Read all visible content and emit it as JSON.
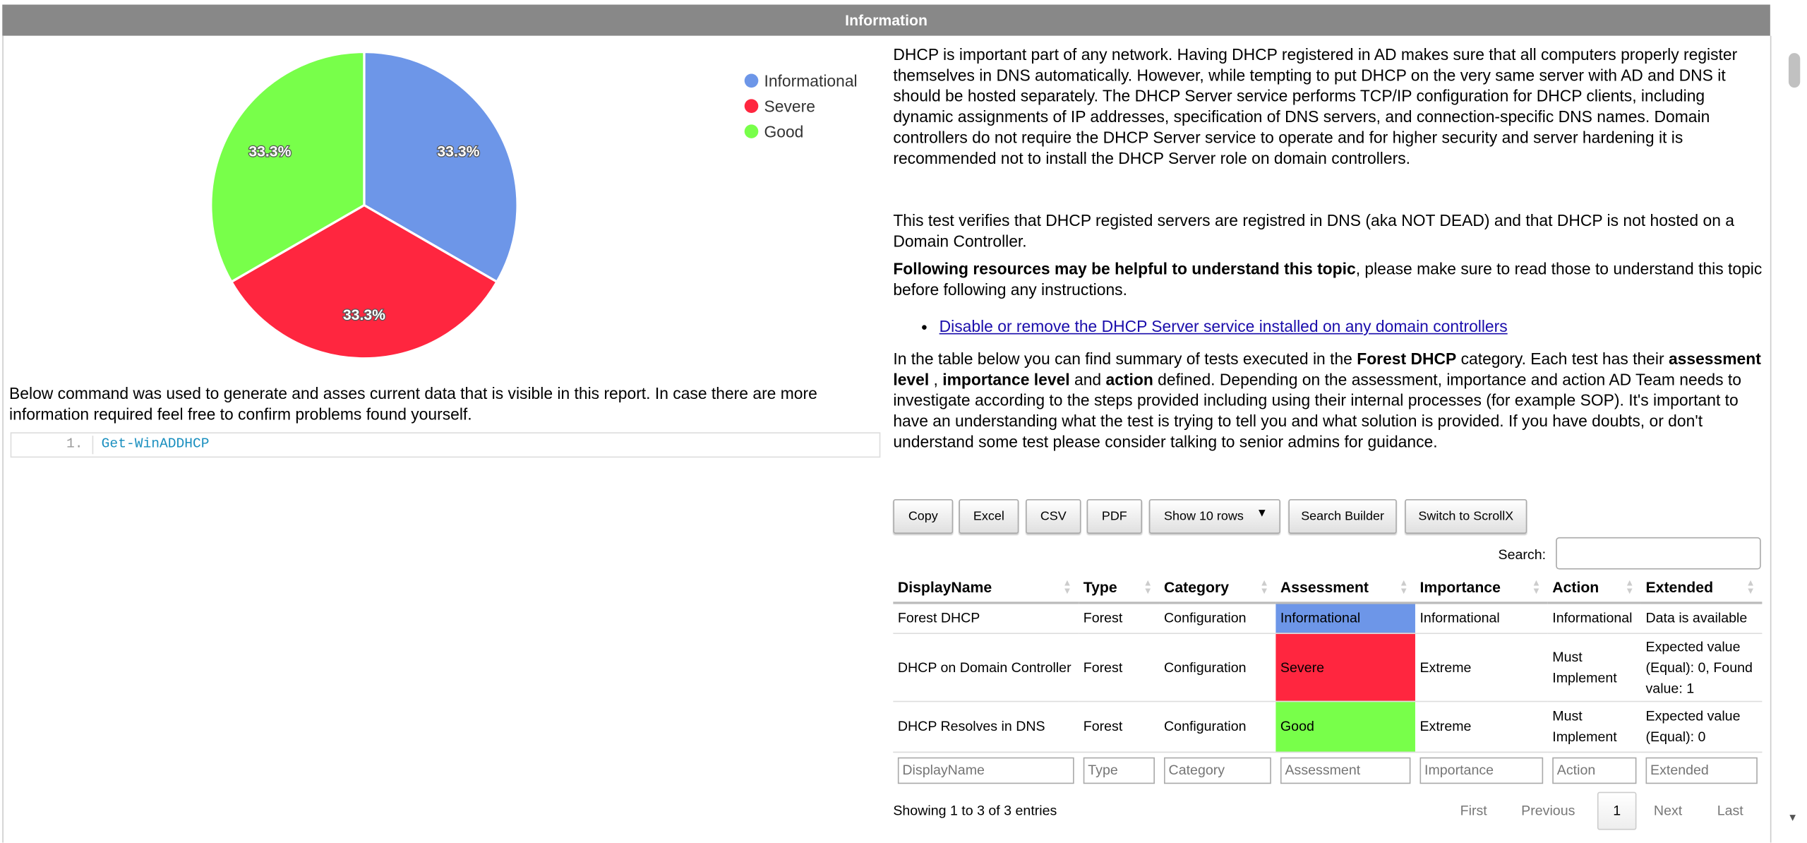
{
  "header": {
    "title": "Information"
  },
  "chart_data": {
    "type": "pie",
    "categories": [
      "Informational",
      "Severe",
      "Good"
    ],
    "values": [
      33.3,
      33.3,
      33.3
    ],
    "labels": [
      "33.3%",
      "33.3%",
      "33.3%"
    ],
    "colors": [
      "#6d96e8",
      "#ff263f",
      "#78ff4a"
    ],
    "legend": "top-right"
  },
  "left": {
    "description": "Below command was used to generate and asses current data that is visible in this report. In case there are more information required feel free to confirm problems found yourself.",
    "code_line": "1.",
    "code": "Get-WinADDHCP"
  },
  "right": {
    "p1": "DHCP is important part of any network. Having DHCP registered in AD makes sure that all computers properly register themselves in DNS automatically. However, while tempting to put DHCP on the very same server with AD and DNS it should be hosted separately. The DHCP Server service performs TCP/IP configuration for DHCP clients, including dynamic assignments of IP addresses, specification of DNS servers, and connection-specific DNS names. Domain controllers do not require the DHCP Server service to operate and for higher security and server hardening it is recommended not to install the DHCP Server role on domain controllers.",
    "p2": "This test verifies that DHCP registed servers are registred in DNS (aka NOT DEAD) and that DHCP is not hosted on a Domain Controller.",
    "p3_bold": "Following resources may be helpful to understand this topic",
    "p3_rest": ", please make sure to read those to understand this topic before following any instructions.",
    "link": "Disable or remove the DHCP Server service installed on any domain controllers",
    "p4_a": "In the table below you can find summary of tests executed in the ",
    "p4_b": "Forest DHCP",
    "p4_c": " category. Each test has their ",
    "p4_d": "assessment level",
    "p4_e": " , ",
    "p4_f": "importance level",
    "p4_g": " and ",
    "p4_h": "action",
    "p4_i": " defined. Depending on the assessment, importance and action AD Team needs to investigate according to the steps provided including using their internal processes (for example SOP). It's important to have an understanding what the test is trying to tell you and what solution is provided. If you have doubts, or don't understand some test please consider talking to senior admins for guidance."
  },
  "toolbar": {
    "copy": "Copy",
    "excel": "Excel",
    "csv": "CSV",
    "pdf": "PDF",
    "show_rows": "Show 10 rows",
    "search_builder": "Search Builder",
    "scrollx": "Switch to ScrollX",
    "search_label": "Search:",
    "search_value": ""
  },
  "table": {
    "columns": [
      "DisplayName",
      "Type",
      "Category",
      "Assessment",
      "Importance",
      "Action",
      "Extended"
    ],
    "rows": [
      [
        "Forest DHCP",
        "Forest",
        "Configuration",
        "Informational",
        "Informational",
        "Informational",
        "Data is available"
      ],
      [
        "DHCP on Domain Controller",
        "Forest",
        "Configuration",
        "Severe",
        "Extreme",
        "Must Implement",
        "Expected value (Equal): 0, Found value: 1"
      ],
      [
        "DHCP Resolves in DNS",
        "Forest",
        "Configuration",
        "Good",
        "Extreme",
        "Must Implement",
        "Expected value (Equal): 0"
      ]
    ],
    "assessment_colors": [
      "#6d96e8",
      "#ff263f",
      "#78ff4a"
    ]
  },
  "footer": {
    "info": "Showing 1 to 3 of 3 entries",
    "first": "First",
    "previous": "Previous",
    "page": "1",
    "next": "Next",
    "last": "Last"
  }
}
